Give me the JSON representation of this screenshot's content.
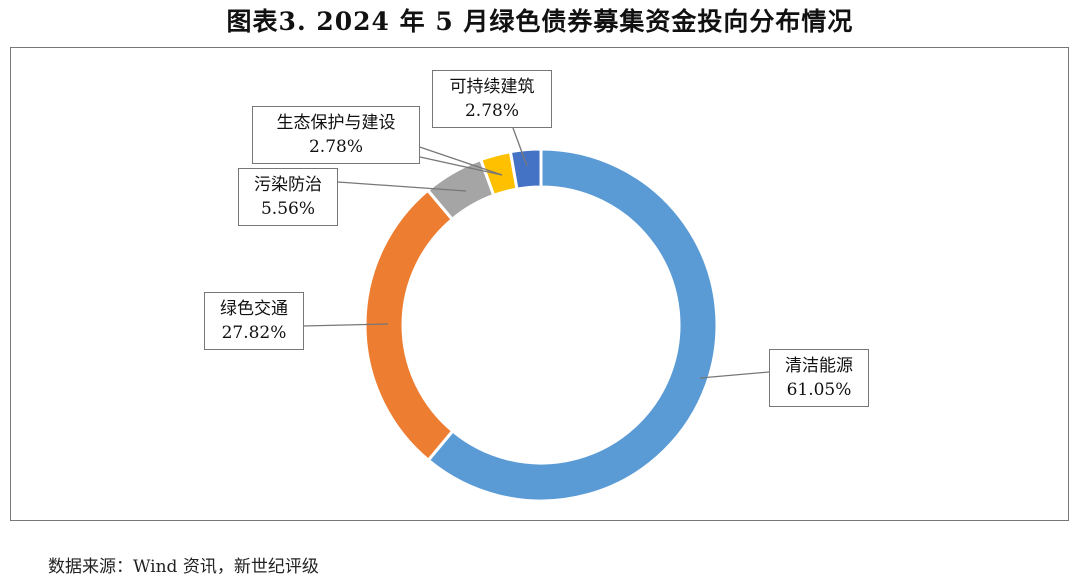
{
  "title": "图表3.   2024 年 5 月绿色债券募集资金投向分布情况",
  "source": "数据来源：Wind 资讯，新世纪评级",
  "chart_data": {
    "type": "pie",
    "variant": "donut",
    "title": "图表3.   2024 年 5 月绿色债券募集资金投向分布情况",
    "start": "top, clockwise",
    "slices": [
      {
        "name": "清洁能源",
        "value": 61.05,
        "label": "61.05%",
        "color": "#5B9BD5"
      },
      {
        "name": "绿色交通",
        "value": 27.82,
        "label": "27.82%",
        "color": "#ED7D31"
      },
      {
        "name": "污染防治",
        "value": 5.56,
        "label": "5.56%",
        "color": "#A5A5A5"
      },
      {
        "name": "生态保护与建设",
        "value": 2.78,
        "label": "2.78%",
        "color": "#FFC000"
      },
      {
        "name": "可持续建筑",
        "value": 2.78,
        "label": "2.78%",
        "color": "#4472C4"
      }
    ]
  }
}
